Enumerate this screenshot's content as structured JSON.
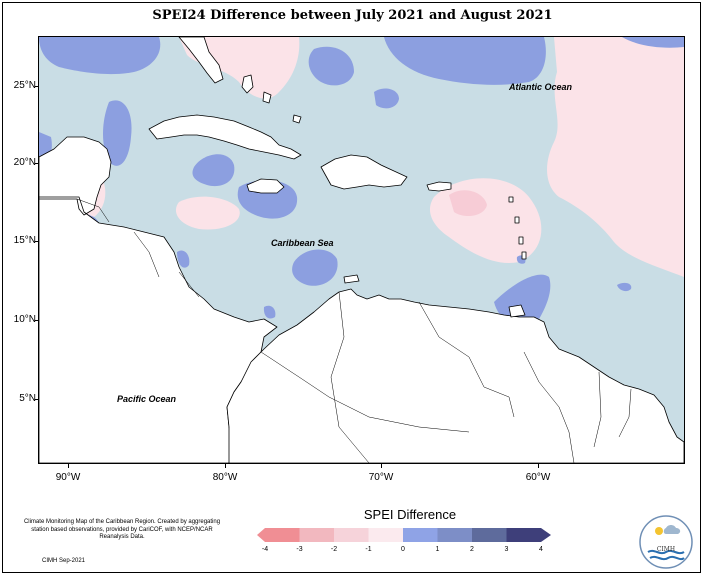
{
  "title": "SPEI24 Difference between July 2021 and August 2021",
  "map": {
    "extent": {
      "lon_min": -92,
      "lon_max": -51,
      "lat_min": 1.5,
      "lat_max": 28.5
    },
    "lat_ticks": [
      "25°N",
      "20°N",
      "15°N",
      "10°N",
      "5°N"
    ],
    "lon_ticks": [
      "90°W",
      "80°W",
      "70°W",
      "60°W"
    ],
    "labels": {
      "atlantic": "Atlantic Ocean",
      "caribbean": "Caribbean Sea",
      "pacific": "Pacific Ocean"
    },
    "colors": {
      "base": "#c9dde5",
      "blue": "#8c9fe0",
      "pink": "#fbe3e8",
      "pink_mid": "#f7ccd6",
      "land": "#ffffff",
      "coast": "#000000"
    }
  },
  "legend": {
    "title": "SPEI Difference",
    "labels": [
      "-4",
      "-3",
      "-2",
      "-1",
      "0",
      "1",
      "2",
      "3",
      "4"
    ],
    "colors": [
      "#f08e94",
      "#f2b8bf",
      "#f6d3da",
      "#fbeaee",
      "#cfdde5",
      "#8fa3e6",
      "#7d8ec7",
      "#5e6b9c",
      "#3e3f7a"
    ]
  },
  "credit": {
    "text": "Climate Monitoring Map of the Caribbean Region. Created by aggregating station based observations, provided by CariCOF, with NCEP/NCAR Reanalysis Data.",
    "foot": "CIMH Sep-2021",
    "logo_text": "CIMH"
  }
}
